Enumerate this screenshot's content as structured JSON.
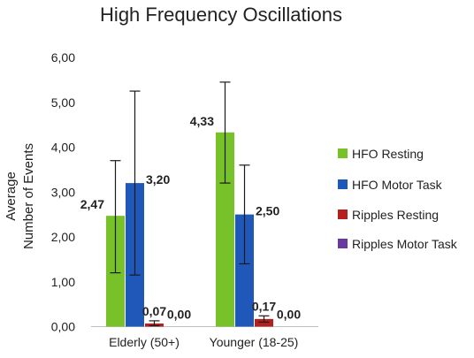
{
  "chart_data": {
    "type": "bar",
    "title": "High Frequency Oscillations",
    "ylabel_line1": "Average",
    "ylabel_line2": "Number of Events",
    "xlabel": "",
    "ylim": [
      0,
      6
    ],
    "yticks": [
      {
        "value": 0,
        "label": "0,00"
      },
      {
        "value": 1,
        "label": "1,00"
      },
      {
        "value": 2,
        "label": "2,00"
      },
      {
        "value": 3,
        "label": "3,00"
      },
      {
        "value": 4,
        "label": "4,00"
      },
      {
        "value": 5,
        "label": "5,00"
      },
      {
        "value": 6,
        "label": "6,00"
      }
    ],
    "grid": false,
    "legend_position": "right",
    "categories": [
      "Elderly (50+)",
      "Younger (18-25)"
    ],
    "series": [
      {
        "name": "HFO Resting",
        "color": "#77c229",
        "values": [
          2.47,
          4.33
        ],
        "labels": [
          "2,47",
          "4,33"
        ],
        "err_low": [
          1.2,
          3.2
        ],
        "err_high": [
          3.7,
          5.45
        ]
      },
      {
        "name": "HFO Motor Task",
        "color": "#1f58b8",
        "values": [
          3.2,
          2.5
        ],
        "labels": [
          "3,20",
          "2,50"
        ],
        "err_low": [
          1.15,
          1.4
        ],
        "err_high": [
          5.25,
          3.6
        ]
      },
      {
        "name": "Ripples Resting",
        "color": "#b3201d",
        "values": [
          0.07,
          0.17
        ],
        "labels": [
          "0,07",
          "0,17"
        ],
        "err_low": [
          0.02,
          0.1
        ],
        "err_high": [
          0.13,
          0.24
        ]
      },
      {
        "name": "Ripples Motor Task",
        "color": "#6b3a9e",
        "values": [
          0.0,
          0.0
        ],
        "labels": [
          "0,00",
          "0,00"
        ],
        "err_low": [
          0,
          0
        ],
        "err_high": [
          0,
          0
        ]
      }
    ]
  }
}
